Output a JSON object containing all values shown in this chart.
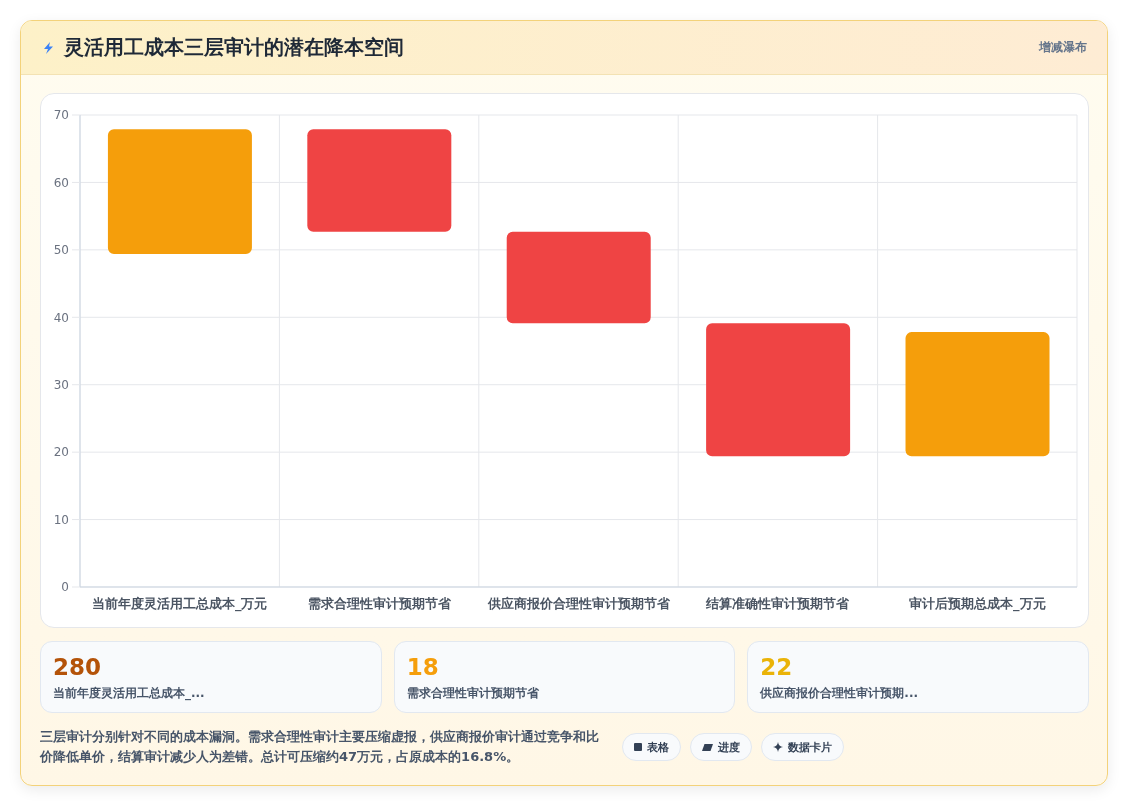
{
  "chart_data": [
    {
      "type": "bar",
      "title": "灵活用工成本三层审计的潜在降本空间",
      "subtitle": "增减瀑布",
      "categories": [
        "当前年度灵活用工总成本_万元",
        "需求合理性审计预期节省",
        "供应商报价合理性审计预期节省",
        "结算准确性审计预期节省",
        "审计后预期总成本_万元"
      ],
      "values": [
        18.5,
        -15.2,
        -13.6,
        -19.7,
        18.4
      ],
      "base": [
        49.4,
        67.9,
        52.7,
        39.1,
        19.4
      ],
      "colors": [
        "#f59e0b",
        "#ef4444",
        "#ef4444",
        "#ef4444",
        "#f59e0b"
      ],
      "ylim": [
        0,
        70
      ],
      "yticks": [
        0,
        10,
        20,
        30,
        40,
        50,
        60,
        70
      ],
      "grid": true
    },
    {
      "type": "other",
      "annotations": [
        "280",
        "当前年度灵活用工总成本_...",
        "18",
        "需求合理性审计预期节省",
        "22",
        "供应商报价合理性审计预期..."
      ]
    },
    {
      "type": "other",
      "annotations": [
        "三层审计分别针对不同的成本漏洞。需求合理性审计主要压缩虚报，供应商报价审计通过竞争和比价降低单价，结算审计减少人为差错。总计可压缩约47万元，占原成本的16.8%。",
        "表格",
        "进度",
        "数据卡片"
      ]
    }
  ]
}
